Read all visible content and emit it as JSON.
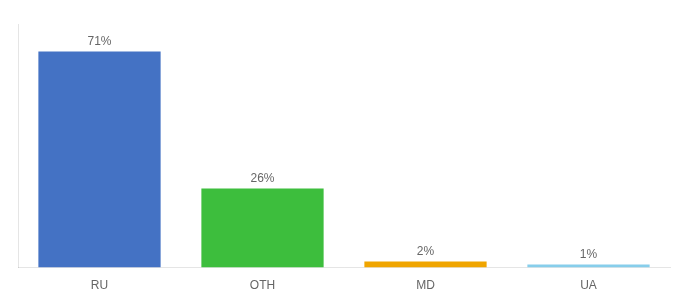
{
  "chart_data": {
    "type": "bar",
    "categories": [
      "RU",
      "OTH",
      "MD",
      "UA"
    ],
    "values": [
      71,
      26,
      2,
      1
    ],
    "value_labels": [
      "71%",
      "26%",
      "2%",
      "1%"
    ],
    "colors": [
      "#4472C4",
      "#3DBE3D",
      "#F0A500",
      "#87CEEB"
    ],
    "ylim": [
      0,
      80
    ],
    "grid": false,
    "data_labels": true,
    "tick_labels": "x"
  }
}
